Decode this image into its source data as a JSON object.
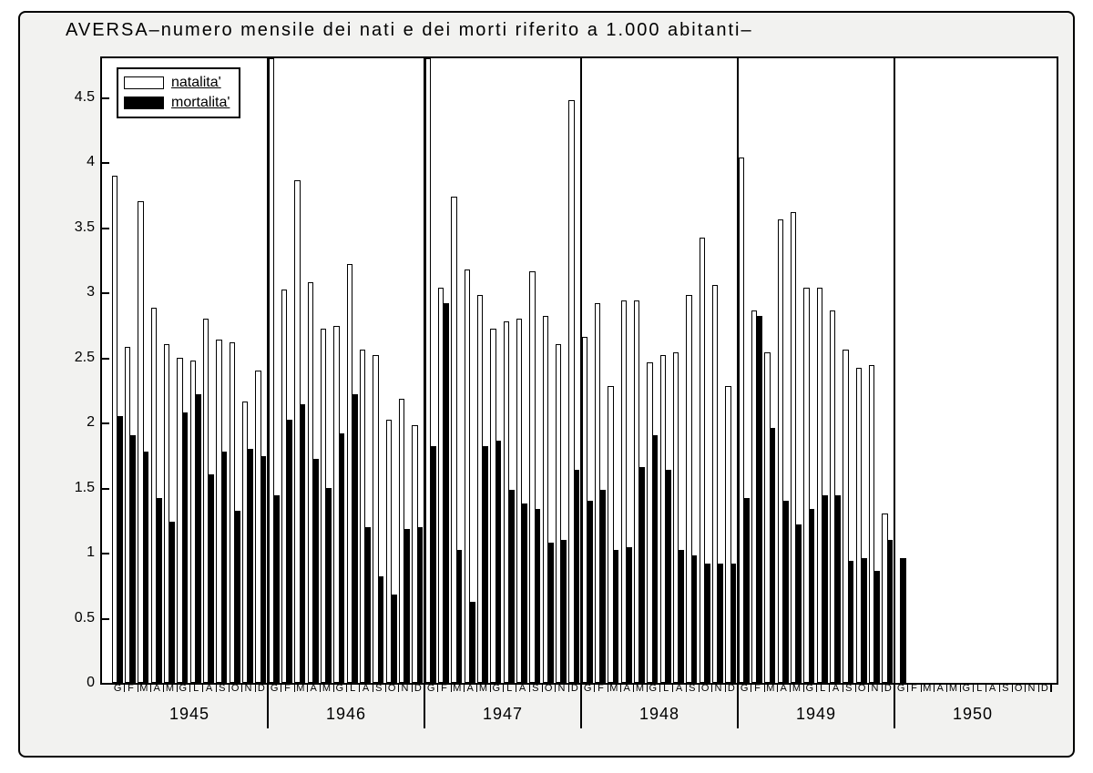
{
  "title": "AVERSA–numero mensile dei nati e dei morti riferito a 1.000 abitanti–",
  "legend": {
    "natalita_label": "natalita'",
    "mortalita_label": "mortalita'",
    "natalita_color": "#ffffff",
    "mortalita_color": "#000000"
  },
  "chart": {
    "type": "bar",
    "background_color": "#ffffff",
    "frame_color": "#000000",
    "ylim": [
      0,
      4.8
    ],
    "yticks": [
      0,
      0.5,
      1,
      1.5,
      2,
      2.5,
      3,
      3.5,
      4,
      4.5
    ],
    "ytick_labels": [
      "0",
      "0.5",
      "1",
      "1.5",
      "2",
      "2.5",
      "3",
      "3.5",
      "4",
      "4.5"
    ],
    "months": [
      "G",
      "F",
      "M",
      "A",
      "M",
      "G",
      "L",
      "A",
      "S",
      "O",
      "N",
      "D"
    ],
    "years": [
      {
        "year": "1945",
        "natalita": [
          3.9,
          2.58,
          3.7,
          2.88,
          2.6,
          2.5,
          2.48,
          2.8,
          2.64,
          2.62,
          2.16,
          2.4
        ],
        "mortalita": [
          2.05,
          1.9,
          1.78,
          1.42,
          1.24,
          2.08,
          2.22,
          1.6,
          1.78,
          1.32,
          1.8,
          1.74
        ]
      },
      {
        "year": "1946",
        "natalita": [
          4.9,
          3.02,
          3.86,
          3.08,
          2.72,
          2.74,
          3.22,
          2.56,
          2.52,
          2.02,
          2.18,
          1.98
        ],
        "mortalita": [
          1.44,
          2.02,
          2.14,
          1.72,
          1.5,
          1.92,
          2.22,
          1.2,
          0.82,
          0.68,
          1.18,
          1.2
        ]
      },
      {
        "year": "1947",
        "natalita": [
          4.9,
          3.04,
          3.74,
          3.18,
          2.98,
          2.72,
          2.78,
          2.8,
          3.16,
          2.82,
          2.6,
          4.48
        ],
        "mortalita": [
          1.82,
          2.92,
          1.02,
          0.62,
          1.82,
          1.86,
          1.48,
          1.38,
          1.34,
          1.08,
          1.1,
          1.64
        ]
      },
      {
        "year": "1948",
        "natalita": [
          2.66,
          2.92,
          2.28,
          2.94,
          2.94,
          2.46,
          2.52,
          2.54,
          2.98,
          3.42,
          3.06,
          2.28
        ],
        "mortalita": [
          1.4,
          1.48,
          1.02,
          1.04,
          1.66,
          1.9,
          1.64,
          1.02,
          0.98,
          0.92,
          0.92,
          0.92
        ]
      },
      {
        "year": "1949",
        "natalita": [
          4.04,
          2.86,
          2.54,
          3.56,
          3.62,
          3.04,
          3.04,
          2.86,
          2.56,
          2.42,
          2.44,
          1.3
        ],
        "mortalita": [
          1.42,
          2.82,
          1.96,
          1.4,
          1.22,
          1.34,
          1.44,
          1.44,
          0.94,
          0.96,
          0.86,
          1.1
        ]
      },
      {
        "year": "1950",
        "natalita": [
          null,
          null,
          null,
          null,
          null,
          null,
          null,
          null,
          null,
          null,
          null,
          null
        ],
        "mortalita": [
          0.96,
          null,
          null,
          null,
          null,
          null,
          null,
          null,
          null,
          null,
          null,
          null
        ]
      }
    ]
  }
}
